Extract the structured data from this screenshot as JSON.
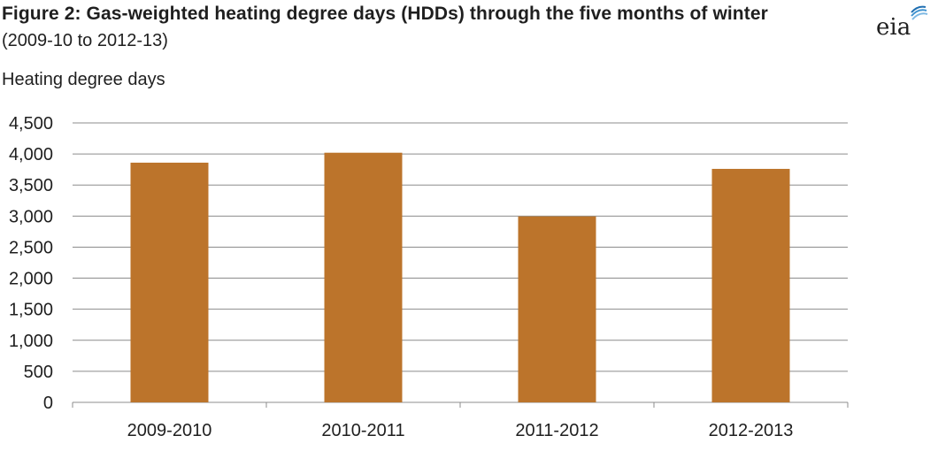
{
  "header": {
    "title": "Figure 2: Gas-weighted heating degree days (HDDs) through the five months of winter",
    "subtitle": "(2009-10 to 2012-13)",
    "logo_text": "eia"
  },
  "chart_data": {
    "type": "bar",
    "categories": [
      "2009-2010",
      "2010-2011",
      "2011-2012",
      "2012-2013"
    ],
    "values": [
      3860,
      4020,
      2995,
      3760
    ],
    "ylabel": "Heating degree days",
    "ylim": [
      0,
      4500
    ],
    "yticks": [
      "0",
      "500",
      "1,000",
      "1,500",
      "2,000",
      "2,500",
      "3,000",
      "3,500",
      "4,000",
      "4,500"
    ],
    "grid": true,
    "bar_color": "#bc742b"
  }
}
